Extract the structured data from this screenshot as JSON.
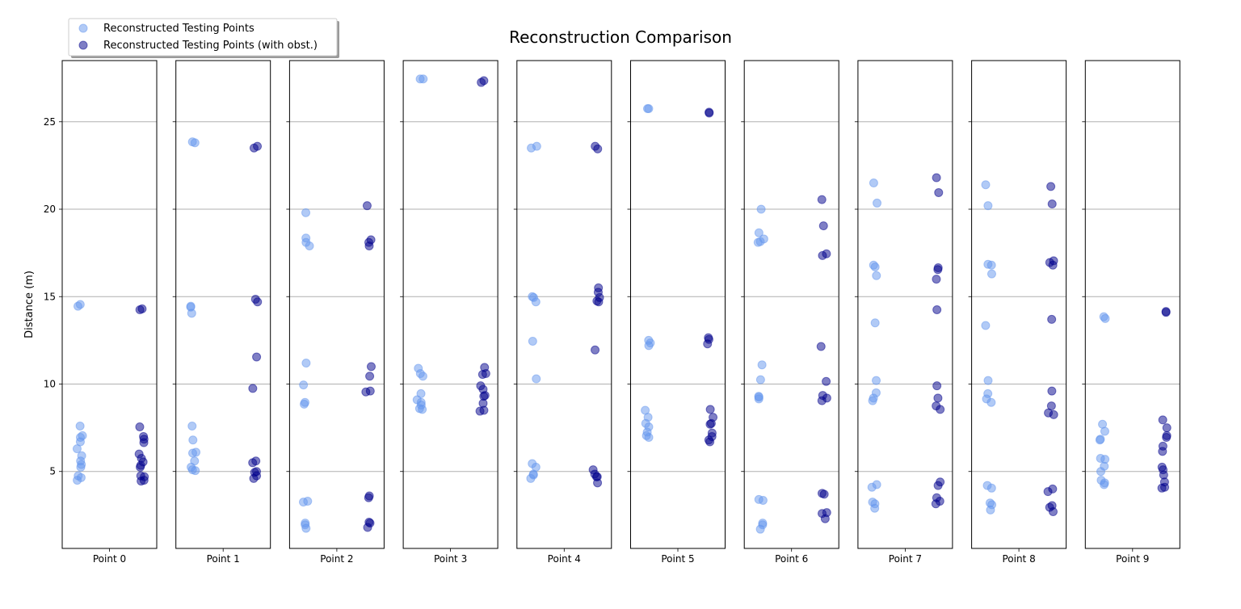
{
  "chart_data": {
    "type": "scatter",
    "title": "Reconstruction Comparison",
    "ylabel": "Distance (m)",
    "xlabel": "",
    "ylim": [
      0.6,
      28.5
    ],
    "yticks": [
      5,
      10,
      15,
      20,
      25
    ],
    "grid": "horizontal",
    "legend_position": "top-left",
    "series_names": [
      "Reconstructed Testing Points",
      "Reconstructed Testing Points (with obst.)"
    ],
    "colors": [
      "#6495ED",
      "#00008B"
    ],
    "panels": [
      {
        "label": "Point 0",
        "series": [
          [
            14.55,
            14.45,
            7.6,
            7.05,
            6.95,
            6.7,
            6.3,
            5.9,
            5.6,
            5.4,
            5.25,
            4.75,
            4.65,
            4.5
          ],
          [
            14.3,
            14.25,
            7.55,
            7.0,
            6.85,
            6.65,
            6.0,
            5.75,
            5.55,
            5.35,
            5.25,
            4.75,
            4.7,
            4.5,
            4.45
          ]
        ]
      },
      {
        "label": "Point 1",
        "series": [
          [
            23.85,
            23.8,
            14.45,
            14.4,
            14.05,
            7.6,
            6.8,
            6.1,
            6.05,
            5.6,
            5.25,
            5.1,
            5.05
          ],
          [
            23.6,
            23.5,
            14.85,
            14.7,
            11.55,
            9.75,
            5.6,
            5.5,
            5.0,
            4.95,
            4.75,
            4.6
          ]
        ]
      },
      {
        "label": "Point 2",
        "series": [
          [
            19.8,
            18.35,
            18.1,
            17.9,
            11.2,
            9.95,
            8.95,
            8.85,
            3.3,
            3.25,
            2.05,
            1.95,
            1.75
          ],
          [
            20.2,
            18.25,
            18.1,
            17.9,
            11.0,
            10.45,
            9.6,
            9.55,
            3.6,
            3.5,
            2.1,
            2.05,
            1.8
          ]
        ]
      },
      {
        "label": "Point 3",
        "series": [
          [
            27.45,
            27.45,
            10.9,
            10.6,
            10.45,
            9.45,
            9.1,
            8.95,
            8.8,
            8.6,
            8.55
          ],
          [
            27.35,
            27.25,
            10.95,
            10.6,
            10.55,
            9.9,
            9.7,
            9.3,
            9.35,
            8.9,
            8.5,
            8.45
          ]
        ]
      },
      {
        "label": "Point 4",
        "series": [
          [
            23.6,
            23.5,
            15.0,
            14.95,
            14.7,
            12.45,
            10.3,
            5.45,
            5.25,
            4.85,
            4.8,
            4.6
          ],
          [
            23.6,
            23.45,
            15.5,
            15.25,
            14.95,
            14.75,
            14.7,
            11.95,
            5.1,
            4.85,
            4.7,
            4.7,
            4.35
          ]
        ]
      },
      {
        "label": "Point 5",
        "series": [
          [
            25.75,
            25.75,
            12.5,
            12.35,
            12.2,
            8.5,
            8.1,
            7.75,
            7.55,
            7.25,
            7.05,
            6.95
          ],
          [
            25.55,
            25.5,
            12.65,
            12.55,
            12.3,
            8.55,
            8.1,
            7.75,
            7.7,
            7.2,
            7.0,
            6.8,
            6.7
          ]
        ]
      },
      {
        "label": "Point 6",
        "series": [
          [
            20.0,
            18.65,
            18.3,
            18.15,
            18.1,
            11.1,
            10.25,
            9.3,
            9.25,
            9.15,
            3.4,
            3.35,
            2.05,
            1.95,
            1.7
          ],
          [
            20.55,
            19.05,
            17.45,
            17.35,
            12.15,
            10.15,
            9.35,
            9.2,
            9.05,
            3.75,
            3.7,
            2.65,
            2.6,
            2.3
          ]
        ]
      },
      {
        "label": "Point 7",
        "series": [
          [
            21.5,
            20.35,
            16.8,
            16.7,
            16.2,
            13.5,
            10.2,
            9.5,
            9.2,
            9.05,
            4.25,
            4.1,
            3.25,
            3.15,
            2.9
          ],
          [
            21.8,
            20.95,
            16.65,
            16.55,
            16.0,
            14.25,
            9.9,
            9.2,
            8.75,
            8.55,
            4.4,
            4.2,
            3.5,
            3.3,
            3.15
          ]
        ]
      },
      {
        "label": "Point 8",
        "series": [
          [
            21.4,
            20.2,
            16.85,
            16.8,
            16.3,
            13.35,
            10.2,
            9.45,
            9.15,
            8.95,
            4.2,
            4.05,
            3.2,
            3.1,
            2.8
          ],
          [
            21.3,
            20.3,
            17.05,
            16.95,
            16.8,
            13.7,
            9.6,
            8.75,
            8.35,
            8.25,
            4.0,
            3.85,
            3.05,
            2.95,
            2.7
          ]
        ]
      },
      {
        "label": "Point 9",
        "series": [
          [
            13.85,
            13.75,
            7.7,
            7.3,
            6.85,
            6.8,
            5.75,
            5.7,
            5.3,
            5.0,
            4.5,
            4.35,
            4.25
          ],
          [
            14.15,
            14.1,
            7.95,
            7.5,
            7.05,
            6.95,
            6.45,
            6.15,
            5.25,
            5.1,
            4.8,
            4.4,
            4.1,
            4.05
          ]
        ]
      }
    ]
  }
}
